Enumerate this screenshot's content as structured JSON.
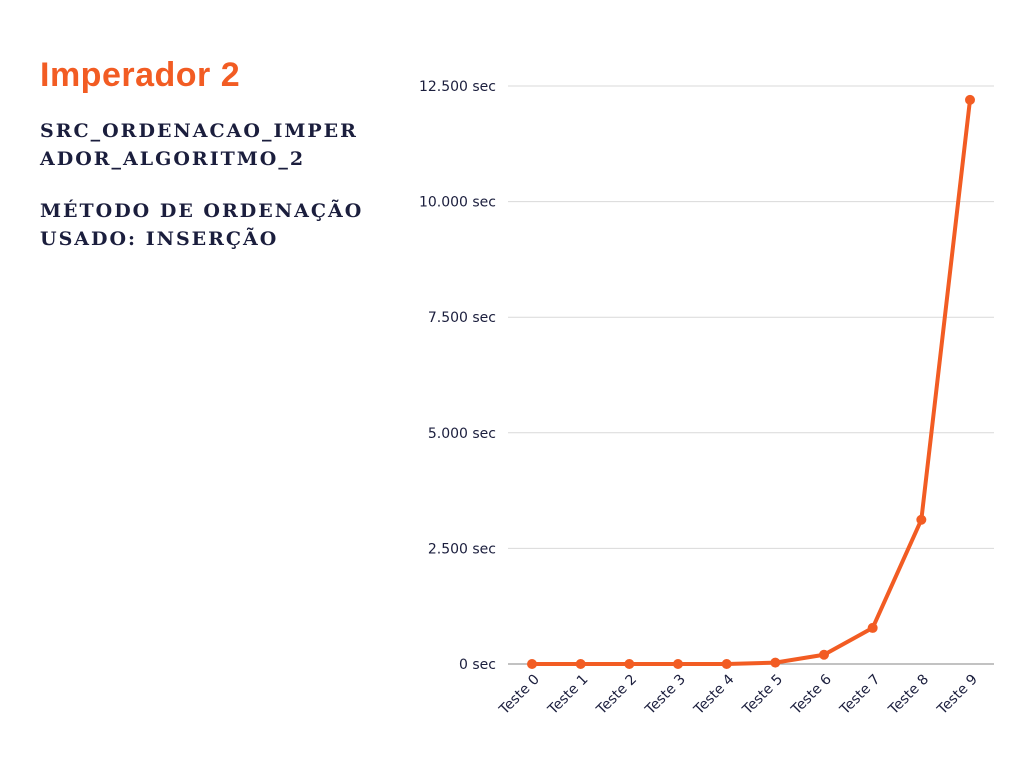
{
  "header": {
    "title": "Imperador 2",
    "subtitle_1": "SRC_ORDENACAO_IMPERADOR_ALGORITMO_2",
    "subtitle_2": "MÉTODO DE ORDENAÇÃO USADO: INSERÇÃO"
  },
  "colors": {
    "accent": "#F25C23",
    "text_dark": "#1B1E3D",
    "grid": "#D9D9D9",
    "axis": "#9E9E9E"
  },
  "chart_data": {
    "type": "line",
    "title": "",
    "xlabel": "",
    "ylabel": "",
    "categories": [
      "Teste 0",
      "Teste 1",
      "Teste 2",
      "Teste 3",
      "Teste 4",
      "Teste 5",
      "Teste 6",
      "Teste 7",
      "Teste 8",
      "Teste 9"
    ],
    "values": [
      0,
      0,
      0,
      0,
      0,
      30,
      200,
      780,
      3120,
      12200
    ],
    "y_unit": "sec",
    "ylim": [
      0,
      12500
    ],
    "yticks": [
      0,
      2500,
      5000,
      7500,
      10000,
      12500
    ],
    "ytick_labels": [
      "0 sec",
      "2.500 sec",
      "5.000 sec",
      "7.500 sec",
      "10.000 sec",
      "12.500 sec"
    ],
    "grid": true,
    "legend": "none"
  }
}
